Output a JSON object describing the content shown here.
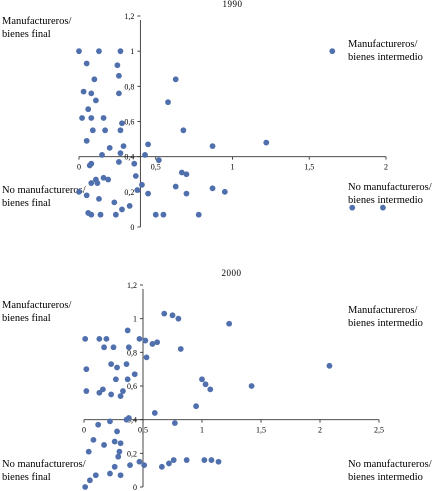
{
  "colors": {
    "point": "#4f6fad",
    "axis": "#333333"
  },
  "chart_data": [
    {
      "type": "scatter",
      "title": "1990",
      "xlim": [
        0,
        2
      ],
      "ylim": [
        0,
        1.2
      ],
      "axis_cross": {
        "x": 0.4,
        "y": 0.4
      },
      "x_ticks": [
        {
          "value": 0,
          "label": "0"
        },
        {
          "value": 0.5,
          "label": "0,5"
        },
        {
          "value": 1,
          "label": "1"
        },
        {
          "value": 1.5,
          "label": "1,5"
        },
        {
          "value": 2,
          "label": "2"
        }
      ],
      "y_ticks": [
        {
          "value": 0,
          "label": "0"
        },
        {
          "value": 0.2,
          "label": "0,2"
        },
        {
          "value": 0.4,
          "label": "0,4"
        },
        {
          "value": 0.6,
          "label": "0,6"
        },
        {
          "value": 0.8,
          "label": "0,8"
        },
        {
          "value": 1,
          "label": "1"
        },
        {
          "value": 1.2,
          "label": "1,2"
        }
      ],
      "quadrant_labels": {
        "top_left": [
          "Manufactureros/",
          "bienes final"
        ],
        "top_right": [
          "Manufactureros/",
          "bienes intermedio"
        ],
        "bottom_left": [
          "No manufactureros/",
          "bienes final"
        ],
        "bottom_right": [
          "No manufactureros/",
          "bienes intermedio"
        ]
      },
      "points": [
        [
          0.0,
          1.0
        ],
        [
          0.13,
          1.0
        ],
        [
          0.27,
          1.0
        ],
        [
          1.65,
          1.0
        ],
        [
          0.05,
          0.93
        ],
        [
          0.25,
          0.92
        ],
        [
          0.1,
          0.84
        ],
        [
          0.26,
          0.86
        ],
        [
          0.63,
          0.84
        ],
        [
          0.03,
          0.77
        ],
        [
          0.08,
          0.76
        ],
        [
          0.26,
          0.76
        ],
        [
          0.11,
          0.72
        ],
        [
          0.58,
          0.71
        ],
        [
          0.06,
          0.67
        ],
        [
          0.02,
          0.62
        ],
        [
          0.08,
          0.62
        ],
        [
          0.16,
          0.62
        ],
        [
          0.28,
          0.59
        ],
        [
          0.09,
          0.55
        ],
        [
          0.17,
          0.55
        ],
        [
          0.27,
          0.55
        ],
        [
          0.68,
          0.55
        ],
        [
          0.05,
          0.49
        ],
        [
          0.45,
          0.47
        ],
        [
          0.87,
          0.46
        ],
        [
          1.22,
          0.48
        ],
        [
          0.2,
          0.45
        ],
        [
          0.29,
          0.46
        ],
        [
          0.15,
          0.41
        ],
        [
          0.27,
          0.42
        ],
        [
          0.43,
          0.41
        ],
        [
          0.52,
          0.38
        ],
        [
          0.08,
          0.36
        ],
        [
          0.07,
          0.35
        ],
        [
          0.26,
          0.37
        ],
        [
          0.36,
          0.36
        ],
        [
          0.37,
          0.29
        ],
        [
          0.67,
          0.31
        ],
        [
          0.7,
          0.3
        ],
        [
          0.11,
          0.27
        ],
        [
          0.16,
          0.28
        ],
        [
          0.19,
          0.27
        ],
        [
          0.08,
          0.25
        ],
        [
          0.12,
          0.25
        ],
        [
          0.41,
          0.24
        ],
        [
          0.63,
          0.23
        ],
        [
          0.38,
          0.21
        ],
        [
          0.87,
          0.22
        ],
        [
          0.0,
          0.2
        ],
        [
          0.95,
          0.2
        ],
        [
          0.45,
          0.19
        ],
        [
          0.7,
          0.19
        ],
        [
          0.05,
          0.18
        ],
        [
          0.13,
          0.16
        ],
        [
          0.23,
          0.14
        ],
        [
          0.33,
          0.12
        ],
        [
          0.28,
          0.1
        ],
        [
          1.78,
          0.11
        ],
        [
          1.98,
          0.11
        ],
        [
          0.06,
          0.08
        ],
        [
          0.08,
          0.07
        ],
        [
          0.14,
          0.07
        ],
        [
          0.24,
          0.07
        ],
        [
          0.5,
          0.07
        ],
        [
          0.55,
          0.07
        ],
        [
          0.78,
          0.07
        ]
      ]
    },
    {
      "type": "scatter",
      "title": "2000",
      "xlim": [
        0,
        2.5
      ],
      "ylim": [
        0,
        1.2
      ],
      "axis_cross": {
        "x": 0.5,
        "y": 0.4
      },
      "x_ticks": [
        {
          "value": 0,
          "label": "0"
        },
        {
          "value": 0.5,
          "label": "0,5"
        },
        {
          "value": 1,
          "label": "1"
        },
        {
          "value": 1.5,
          "label": "1,5"
        },
        {
          "value": 2,
          "label": "2"
        },
        {
          "value": 2.5,
          "label": "2,5"
        }
      ],
      "y_ticks": [
        {
          "value": 0,
          "label": "0"
        },
        {
          "value": 0.2,
          "label": "0,2"
        },
        {
          "value": 0.4,
          "label": "0,4"
        },
        {
          "value": 0.6,
          "label": "0,6"
        },
        {
          "value": 0.8,
          "label": "0,8"
        },
        {
          "value": 1,
          "label": "1"
        },
        {
          "value": 1.2,
          "label": "1,2"
        }
      ],
      "quadrant_labels": {
        "top_left": [
          "Manufactureros/",
          "bienes final"
        ],
        "top_right": [
          "Manufactureros/",
          "bienes intermedio"
        ],
        "bottom_left": [
          "No manufactureros/",
          "bienes final"
        ],
        "bottom_right": [
          "No manufactureros/",
          "bienes intermedio"
        ]
      },
      "points": [
        [
          0.68,
          1.03
        ],
        [
          0.75,
          1.02
        ],
        [
          0.8,
          1.0
        ],
        [
          1.23,
          0.97
        ],
        [
          0.37,
          0.93
        ],
        [
          0.01,
          0.88
        ],
        [
          0.13,
          0.88
        ],
        [
          0.19,
          0.88
        ],
        [
          0.47,
          0.88
        ],
        [
          0.52,
          0.87
        ],
        [
          0.62,
          0.86
        ],
        [
          0.58,
          0.85
        ],
        [
          0.17,
          0.83
        ],
        [
          0.25,
          0.83
        ],
        [
          0.38,
          0.83
        ],
        [
          0.82,
          0.82
        ],
        [
          0.53,
          0.77
        ],
        [
          0.36,
          0.73
        ],
        [
          0.23,
          0.73
        ],
        [
          2.08,
          0.72
        ],
        [
          0.02,
          0.7
        ],
        [
          0.28,
          0.71
        ],
        [
          0.43,
          0.67
        ],
        [
          0.37,
          0.64
        ],
        [
          1.0,
          0.64
        ],
        [
          0.27,
          0.64
        ],
        [
          1.03,
          0.61
        ],
        [
          1.42,
          0.6
        ],
        [
          1.07,
          0.58
        ],
        [
          0.16,
          0.58
        ],
        [
          0.33,
          0.57
        ],
        [
          0.02,
          0.57
        ],
        [
          0.13,
          0.56
        ],
        [
          0.23,
          0.55
        ],
        [
          0.31,
          0.54
        ],
        [
          0.6,
          0.44
        ],
        [
          0.95,
          0.48
        ],
        [
          0.38,
          0.41
        ],
        [
          0.12,
          0.37
        ],
        [
          0.22,
          0.39
        ],
        [
          0.36,
          0.4
        ],
        [
          0.77,
          0.38
        ],
        [
          0.28,
          0.33
        ],
        [
          0.08,
          0.28
        ],
        [
          0.26,
          0.27
        ],
        [
          0.31,
          0.26
        ],
        [
          0.17,
          0.25
        ],
        [
          0.04,
          0.21
        ],
        [
          0.3,
          0.21
        ],
        [
          0.29,
          0.18
        ],
        [
          0.76,
          0.16
        ],
        [
          0.87,
          0.16
        ],
        [
          1.02,
          0.16
        ],
        [
          1.08,
          0.16
        ],
        [
          1.14,
          0.15
        ],
        [
          0.47,
          0.15
        ],
        [
          0.51,
          0.13
        ],
        [
          0.72,
          0.14
        ],
        [
          0.26,
          0.12
        ],
        [
          0.39,
          0.13
        ],
        [
          0.66,
          0.12
        ],
        [
          0.22,
          0.08
        ],
        [
          0.31,
          0.07
        ],
        [
          0.1,
          0.07
        ],
        [
          0.05,
          0.04
        ],
        [
          0.01,
          0.0
        ]
      ]
    }
  ]
}
